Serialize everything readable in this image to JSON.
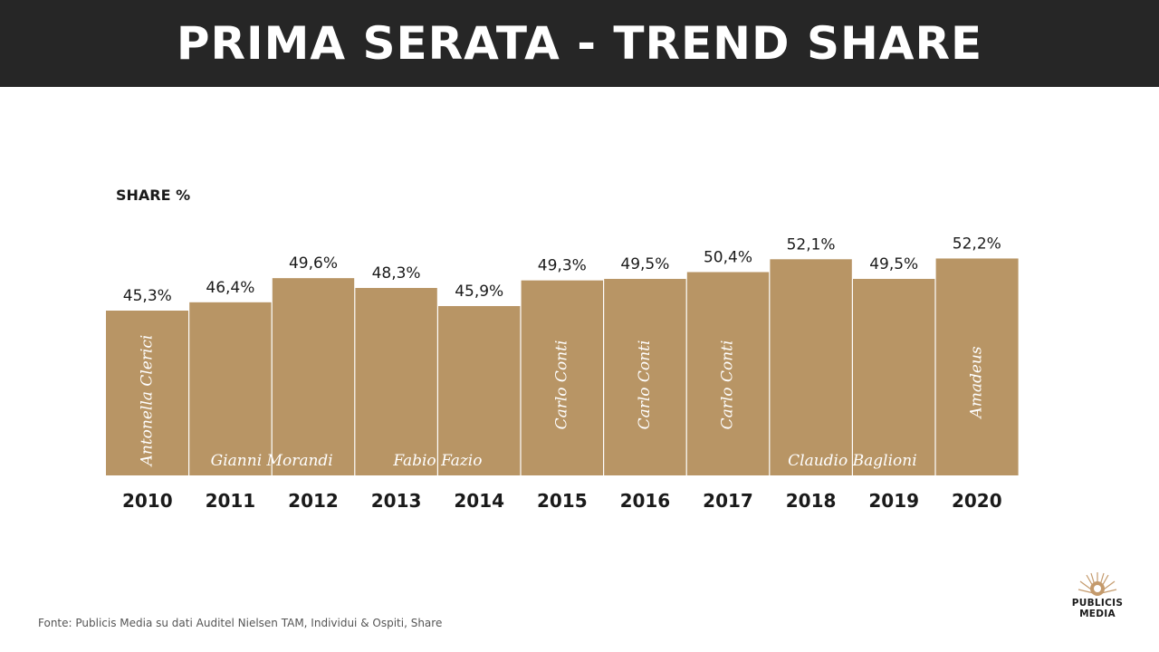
{
  "header": {
    "title": "PRIMA SERATA - TREND SHARE"
  },
  "chart_data": {
    "type": "bar",
    "ylabel": "SHARE %",
    "categories": [
      "2010",
      "2011",
      "2012",
      "2013",
      "2014",
      "2015",
      "2016",
      "2017",
      "2018",
      "2019",
      "2020"
    ],
    "values": [
      45.3,
      46.4,
      49.6,
      48.3,
      45.9,
      49.3,
      49.5,
      50.4,
      52.1,
      49.5,
      52.2
    ],
    "data_labels": [
      "45,3%",
      "46,4%",
      "49,6%",
      "48,3%",
      "45,9%",
      "49,3%",
      "49,5%",
      "50,4%",
      "52,1%",
      "49,5%",
      "52,2%"
    ],
    "hosts": [
      {
        "text": "Antonella Clerici",
        "bars": [
          0
        ],
        "orientation": "vertical"
      },
      {
        "text": "Gianni Morandi",
        "bars": [
          1,
          2
        ],
        "orientation": "horizontal"
      },
      {
        "text": "Fabio Fazio",
        "bars": [
          3,
          4
        ],
        "orientation": "horizontal"
      },
      {
        "text": "Carlo Conti",
        "bars": [
          5
        ],
        "orientation": "vertical"
      },
      {
        "text": "Carlo Conti",
        "bars": [
          6
        ],
        "orientation": "vertical"
      },
      {
        "text": "Carlo Conti",
        "bars": [
          7
        ],
        "orientation": "vertical"
      },
      {
        "text": "Claudio Baglioni",
        "bars": [
          8,
          9
        ],
        "orientation": "horizontal"
      },
      {
        "text": "Amadeus",
        "bars": [
          10
        ],
        "orientation": "vertical"
      }
    ],
    "grid": false,
    "legend": "none",
    "colors": {
      "bar": "#B89565",
      "separator": "#ffffff",
      "label": "#1a1a1a",
      "host_text": "#ffffff"
    }
  },
  "footer": {
    "source": "Fonte: Publicis Media su dati Auditel Nielsen TAM, Individui & Ospiti, Share"
  },
  "logo": {
    "line1": "PUBLICIS",
    "line2": "MEDIA",
    "icon": "lion-sun-logo-icon"
  }
}
